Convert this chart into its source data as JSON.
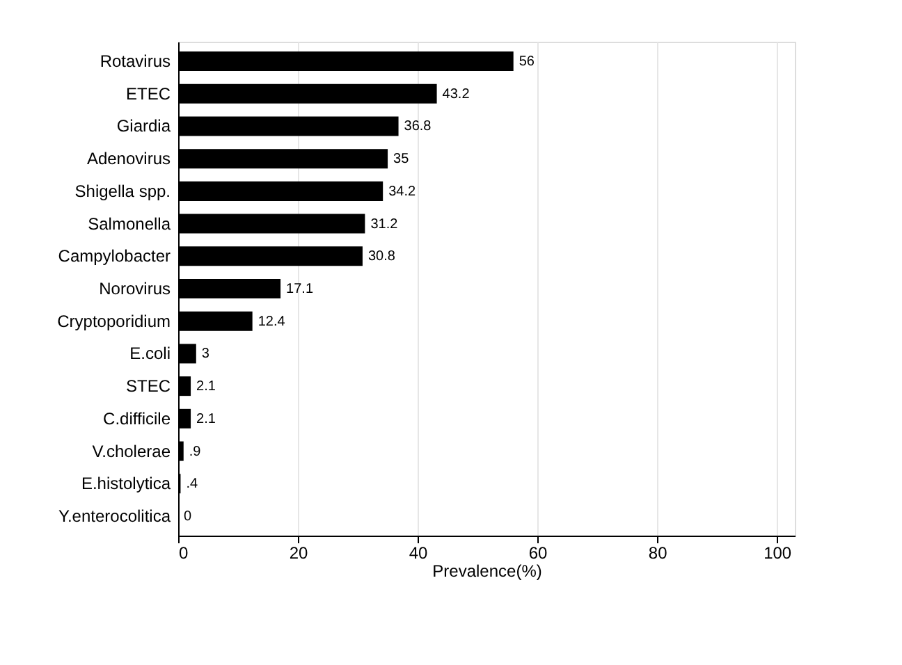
{
  "chart_data": {
    "type": "bar",
    "orientation": "horizontal",
    "xlabel": "Prevalence(%)",
    "categories": [
      "Rotavirus",
      "ETEC",
      "Giardia",
      "Adenovirus",
      "Shigella spp.",
      "Salmonella",
      "Campylobacter",
      "Norovirus",
      "Cryptoporidium",
      "E.coli",
      "STEC",
      "C.difficile",
      "V.cholerae",
      "E.histolytica",
      "Y.enterocolitica"
    ],
    "values": [
      56,
      43.2,
      36.8,
      35,
      34.2,
      31.2,
      30.8,
      17.1,
      12.4,
      3,
      2.1,
      2.1,
      0.9,
      0.4,
      0
    ],
    "value_labels": [
      "56",
      "43.2",
      "36.8",
      "35",
      "34.2",
      "31.2",
      "30.8",
      "17.1",
      "12.4",
      "3",
      "2.1",
      "2.1",
      ".9",
      ".4",
      "0"
    ],
    "color": "#000000",
    "xlim": [
      0,
      103
    ],
    "xticks": [
      0,
      20,
      40,
      60,
      80,
      100
    ],
    "grid": "x"
  }
}
